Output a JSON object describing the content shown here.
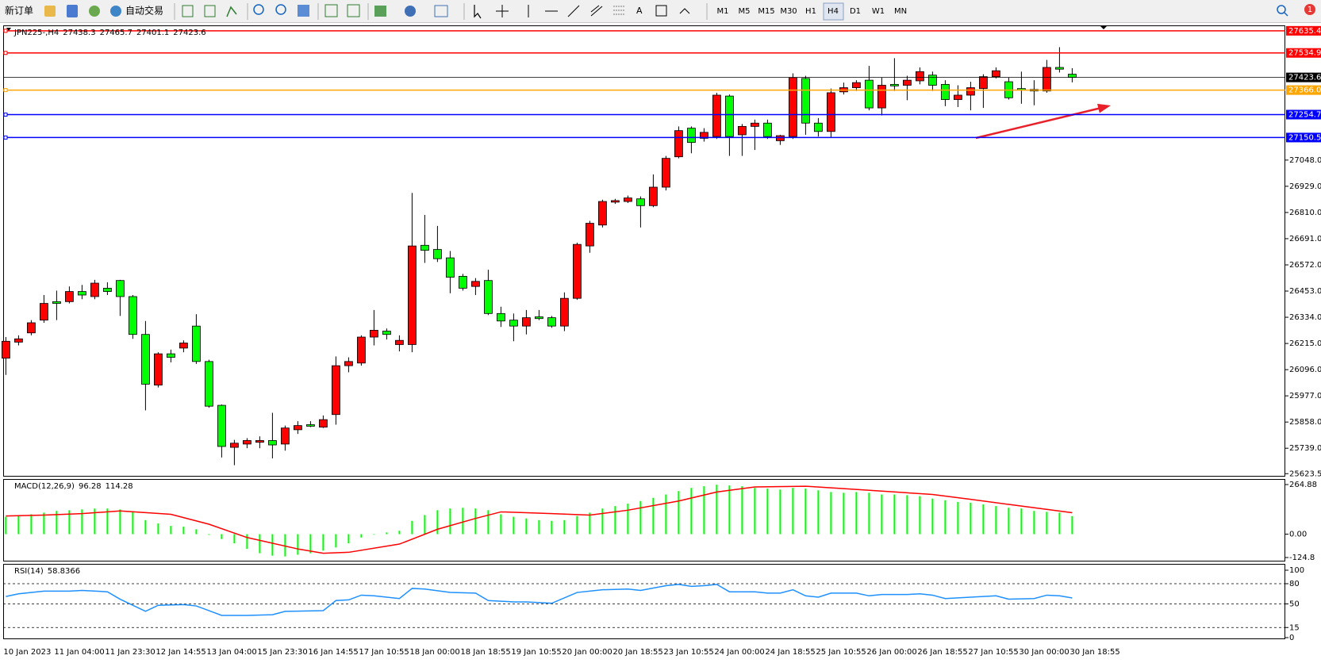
{
  "toolbar": {
    "new_order": "新订单",
    "auto_trading": "自动交易",
    "timeframes": [
      "M1",
      "M5",
      "M15",
      "M30",
      "H1",
      "H4",
      "D1",
      "W1",
      "MN"
    ],
    "notifications": 1
  },
  "chart_data": [
    {
      "type": "candlestick",
      "title": "JPN225-,H4",
      "categories": [
        "10 Jan 2023",
        null,
        null,
        null,
        "11 Jan 04:00",
        null,
        null,
        null,
        "11 Jan 23:30",
        null,
        null,
        null,
        "12 Jan 14:55",
        null,
        null,
        null,
        "13 Jan 04:00",
        null,
        null,
        null,
        "15 Jan 23:30",
        null,
        null,
        null,
        "16 Jan 14:55",
        null,
        null,
        null,
        "17 Jan 10:55",
        null,
        null,
        null,
        "18 Jan 00:00",
        null,
        null,
        null,
        "18 Jan 18:55",
        null,
        null,
        null,
        "19 Jan 10:55",
        null,
        null,
        null,
        "20 Jan 00:00",
        null,
        null,
        null,
        "20 Jan 18:55",
        null,
        null,
        null,
        "23 Jan 10:55",
        null,
        null,
        null,
        "24 Jan 00:00",
        null,
        null,
        null,
        "24 Jan 18:55",
        null,
        null,
        null,
        "25 Jan 10:55",
        null,
        null,
        null,
        "26 Jan 00:00",
        null,
        null,
        null,
        "26 Jan 18:55",
        null,
        null,
        null,
        "27 Jan 10:55",
        null,
        null,
        null,
        "30 Jan 00:00",
        null,
        null,
        null,
        "30 Jan 18:55"
      ],
      "open": [
        26148,
        26221,
        26263,
        26321,
        26405,
        26405,
        26451,
        26428,
        26466,
        26501,
        26428,
        26256,
        26026,
        26168,
        26194,
        26294,
        26133,
        25934,
        25743,
        25758,
        25766,
        25774,
        25758,
        25823,
        25846,
        25835,
        25892,
        26114,
        26126,
        26244,
        26271,
        26210,
        26210,
        26661,
        26642,
        26604,
        26520,
        26474,
        26501,
        26351,
        26321,
        26294,
        26336,
        26332,
        26294,
        26420,
        26658,
        26753,
        26857,
        26860,
        26872,
        26841,
        26925,
        27063,
        27193,
        27147,
        27155,
        27339,
        27163,
        27201,
        27216,
        27136,
        27155,
        27419,
        27216,
        27178,
        27358,
        27377,
        27411,
        27285,
        27392,
        27388,
        27408,
        27434,
        27392,
        27323,
        27343,
        27373,
        27427,
        27404,
        27373,
        27369,
        27362,
        27469,
        27438.3
      ],
      "high": [
        26244,
        26252,
        26321,
        26435,
        26455,
        26474,
        26481,
        26504,
        26493,
        26504,
        26435,
        26317,
        26175,
        26187,
        26229,
        26348,
        26141,
        25938,
        25777,
        25785,
        25793,
        25900,
        25842,
        25862,
        25862,
        25888,
        26156,
        26152,
        26252,
        26367,
        26283,
        26252,
        26899,
        26799,
        26749,
        26635,
        26531,
        26512,
        26550,
        26382,
        26351,
        26367,
        26367,
        26340,
        26447,
        26673,
        26772,
        26868,
        26872,
        26887,
        26883,
        26983,
        27067,
        27201,
        27201,
        27193,
        27354,
        27346,
        27212,
        27232,
        27232,
        27163,
        27442,
        27431,
        27239,
        27373,
        27400,
        27411,
        27476,
        27423,
        27511,
        27431,
        27469,
        27450,
        27411,
        27388,
        27404,
        27438,
        27469,
        27423,
        27450,
        27411,
        27503,
        27561,
        27465.7
      ],
      "low": [
        26072,
        26206,
        26252,
        26309,
        26321,
        26397,
        26416,
        26416,
        26435,
        26340,
        26236,
        25911,
        26015,
        26129,
        26175,
        26122,
        25923,
        25697,
        25662,
        25739,
        25739,
        25693,
        25728,
        25804,
        25835,
        25831,
        25846,
        26084,
        26114,
        26206,
        26233,
        26179,
        26175,
        26581,
        26585,
        26443,
        26455,
        26435,
        26344,
        26290,
        26225,
        26256,
        26321,
        26286,
        26271,
        26413,
        26627,
        26742,
        26849,
        26853,
        26742,
        26834,
        26910,
        27056,
        27079,
        27132,
        27144,
        27067,
        27067,
        27094,
        27144,
        27117,
        27144,
        27163,
        27155,
        27151,
        27346,
        27362,
        27274,
        27251,
        27362,
        27320,
        27392,
        27362,
        27293,
        27289,
        27274,
        27285,
        27419,
        27323,
        27304,
        27297,
        27354,
        27446,
        27401.1
      ],
      "close": [
        26225,
        26236,
        26309,
        26397,
        26397,
        26451,
        26435,
        26489,
        26451,
        26428,
        26256,
        26030,
        26168,
        26152,
        26217,
        26133,
        25930,
        25747,
        25762,
        25774,
        25774,
        25754,
        25831,
        25842,
        25839,
        25869,
        26114,
        26133,
        26244,
        26275,
        26256,
        26229,
        26658,
        26638,
        26600,
        26516,
        26466,
        26497,
        26351,
        26317,
        26294,
        26332,
        26328,
        26294,
        26420,
        26665,
        26761,
        26860,
        26864,
        26876,
        26841,
        26925,
        27056,
        27182,
        27128,
        27174,
        27343,
        27155,
        27201,
        27216,
        27155,
        27159,
        27423,
        27216,
        27178,
        27354,
        27377,
        27400,
        27285,
        27388,
        27385,
        27411,
        27450,
        27388,
        27323,
        27343,
        27377,
        27427,
        27454,
        27331,
        27366,
        27362,
        27469,
        27461,
        27423.6
      ],
      "up_color": "#ff0000",
      "down_color": "#00ff00",
      "bid_color": "#000000",
      "ylim": [
        25610,
        27660
      ],
      "yticks": [
        25623.5,
        {
          "value": 25739,
          "label": "25739.0"
        },
        {
          "value": 25858,
          "label": "25858.0"
        },
        {
          "value": 25977,
          "label": "25977.0"
        },
        {
          "value": 26096,
          "label": "26096.0"
        },
        {
          "value": 26215,
          "label": "26215.0"
        },
        {
          "value": 26334,
          "label": "26334.0"
        },
        {
          "value": 26453,
          "label": "26453.0"
        },
        {
          "value": 26572,
          "label": "26572.0"
        },
        {
          "value": 26691,
          "label": "26691.0"
        },
        {
          "value": 26810,
          "label": "26810.0"
        },
        {
          "value": 26929,
          "label": "26929.0"
        },
        {
          "value": 27048,
          "label": "27048.0"
        }
      ],
      "hlines": {
        "values": [
          27635.4,
          27534.9,
          27366,
          27254.7,
          27150.5
        ],
        "value_labels": [
          "27635.4",
          "27534.9",
          "27366.0",
          "27254.7",
          "27150.5"
        ],
        "colors": [
          "#ff0000",
          "#ff0000",
          "#ffa500",
          "#0000ff",
          "#0000ff"
        ]
      }
    },
    {
      "type": "macd",
      "title": "MACD(12,26,9)",
      "series": [
        {
          "color": "#00ff00",
          "values": [
            93,
            97,
            106,
            115,
            124,
            128,
            132,
            137,
            137,
            132,
            119,
            75,
            57,
            44,
            40,
            26,
            -4,
            -26,
            -49,
            -79,
            -102,
            -115,
            -119,
            -110,
            -102,
            -88,
            -71,
            -49,
            -18,
            -3,
            9,
            18,
            71,
            102,
            128,
            137,
            141,
            137,
            128,
            106,
            93,
            84,
            75,
            71,
            75,
            97,
            115,
            137,
            150,
            163,
            177,
            194,
            212,
            230,
            247,
            256,
            264,
            260,
            256,
            247,
            243,
            238,
            247,
            243,
            234,
            225,
            221,
            225,
            221,
            212,
            212,
            208,
            203,
            190,
            181,
            172,
            168,
            159,
            150,
            141,
            137,
            124,
            119,
            115,
            96.28
          ]
        },
        {
          "color": "#ff0000",
          "x": [
            0,
            3,
            6,
            9,
            13,
            16,
            19,
            23,
            25,
            27,
            31,
            34,
            37,
            39,
            43,
            46,
            49,
            53,
            56,
            59,
            63,
            66,
            69,
            73,
            76,
            79,
            84
          ],
          "values": [
            97,
            102,
            110,
            124,
            106,
            53,
            -18,
            -79,
            -102,
            -97,
            -53,
            26,
            84,
            119,
            110,
            102,
            128,
            177,
            225,
            252,
            256,
            243,
            230,
            212,
            186,
            159,
            114.28
          ]
        }
      ],
      "ylim": [
        -124.8,
        264.88
      ],
      "yticks": [
        264.88,
        {
          "value": 0,
          "label": "0.00"
        },
        -124.8
      ]
    },
    {
      "type": "line",
      "title": "RSI(14)",
      "color": "#1e90ff",
      "x": [
        0,
        1,
        3,
        5,
        6,
        8,
        9,
        11,
        12,
        14,
        15,
        17,
        19,
        21,
        22,
        25,
        26,
        27,
        28,
        29,
        31,
        32,
        33,
        35,
        37,
        38,
        40,
        41,
        43,
        45,
        47,
        49,
        50,
        52,
        53,
        54,
        55,
        56,
        57,
        59,
        60,
        61,
        62,
        63,
        64,
        65,
        67,
        68,
        69,
        71,
        72,
        73,
        74,
        76,
        78,
        79,
        81,
        82,
        83,
        84
      ],
      "values": [
        61,
        65,
        69,
        69,
        70,
        68,
        57,
        39,
        48,
        49,
        47,
        33,
        33,
        34,
        39,
        40,
        55,
        56,
        63,
        62,
        58,
        73,
        72,
        67,
        66,
        55,
        53,
        53,
        51,
        67,
        71,
        72,
        70,
        77,
        79,
        76,
        77,
        79,
        68,
        68,
        66,
        66,
        71,
        62,
        60,
        66,
        66,
        62,
        64,
        64,
        65,
        63,
        58,
        60,
        62,
        57,
        58,
        63,
        62,
        58.8366
      ],
      "ylim": [
        0,
        100
      ],
      "yticks": [
        100,
        80,
        50,
        15,
        0
      ]
    }
  ]
}
